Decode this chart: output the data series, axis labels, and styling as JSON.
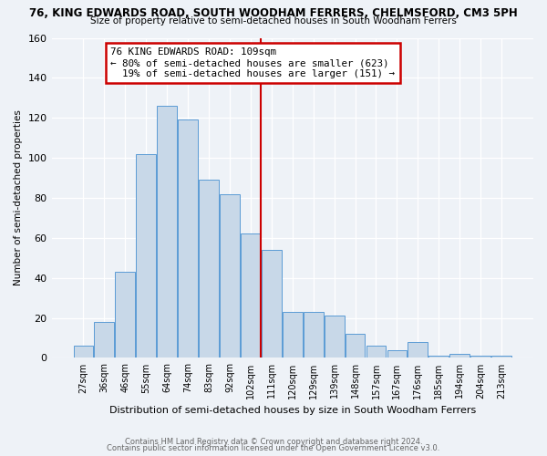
{
  "title1": "76, KING EDWARDS ROAD, SOUTH WOODHAM FERRERS, CHELMSFORD, CM3 5PH",
  "title2": "Size of property relative to semi-detached houses in South Woodham Ferrers",
  "xlabel": "Distribution of semi-detached houses by size in South Woodham Ferrers",
  "ylabel": "Number of semi-detached properties",
  "categories": [
    "27sqm",
    "36sqm",
    "46sqm",
    "55sqm",
    "64sqm",
    "74sqm",
    "83sqm",
    "92sqm",
    "102sqm",
    "111sqm",
    "120sqm",
    "129sqm",
    "139sqm",
    "148sqm",
    "157sqm",
    "167sqm",
    "176sqm",
    "185sqm",
    "194sqm",
    "204sqm",
    "213sqm"
  ],
  "values": [
    6,
    18,
    43,
    102,
    126,
    119,
    89,
    82,
    62,
    54,
    23,
    23,
    21,
    12,
    6,
    4,
    8,
    1,
    2,
    1,
    1
  ],
  "bar_color": "#c8d8e8",
  "bar_edge_color": "#5b9bd5",
  "reference_line_x": 8.5,
  "reference_line_label": "76 KING EDWARDS ROAD: 109sqm",
  "pct_smaller": 80,
  "count_smaller": 623,
  "pct_larger": 19,
  "count_larger": 151,
  "annotation_box_color": "#cc0000",
  "ylim": [
    0,
    160
  ],
  "yticks": [
    0,
    20,
    40,
    60,
    80,
    100,
    120,
    140,
    160
  ],
  "footer1": "Contains HM Land Registry data © Crown copyright and database right 2024.",
  "footer2": "Contains public sector information licensed under the Open Government Licence v3.0.",
  "background_color": "#eef2f7"
}
